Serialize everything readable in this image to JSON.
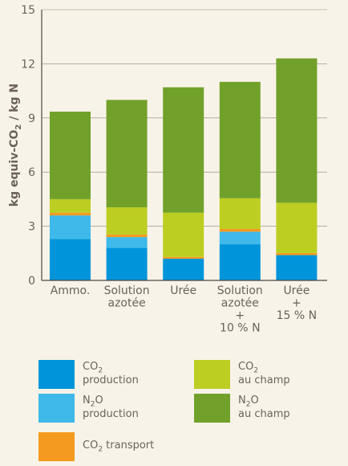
{
  "chart_data": {
    "type": "bar",
    "stacked": true,
    "ylabel": "kg equiv-CO2 / kg N",
    "ylim": [
      0,
      15
    ],
    "yticks": [
      0,
      3,
      6,
      9,
      12,
      15
    ],
    "grid": true,
    "categories": [
      [
        "Ammo."
      ],
      [
        "Solution",
        "azotée"
      ],
      [
        "Urée"
      ],
      [
        "Solution",
        "azotée",
        "+",
        "10 % N"
      ],
      [
        "Urée",
        "+",
        "15 % N"
      ]
    ],
    "series": [
      {
        "name": "CO2 production",
        "color": "#0095da",
        "values": [
          2.3,
          1.8,
          1.2,
          2.0,
          1.4
        ]
      },
      {
        "name": "N2O production",
        "color": "#3fb9ea",
        "values": [
          1.3,
          0.6,
          0.0,
          0.7,
          0.0
        ]
      },
      {
        "name": "CO2 transport",
        "color": "#f39a1f",
        "values": [
          0.15,
          0.15,
          0.1,
          0.15,
          0.12
        ]
      },
      {
        "name": "CO2 au champ",
        "color": "#bcce22",
        "values": [
          0.75,
          1.5,
          2.45,
          1.7,
          2.78
        ]
      },
      {
        "name": "N2O au champ",
        "color": "#72a12b",
        "values": [
          4.85,
          5.95,
          6.95,
          6.45,
          8.0
        ]
      }
    ]
  },
  "legend": [
    {
      "line1_pre": "CO",
      "line1_sub": "2",
      "line1_post": "",
      "line2": "production",
      "color": "#0095da"
    },
    {
      "line1_pre": "CO",
      "line1_sub": "2",
      "line1_post": "",
      "line2": "au champ",
      "color": "#bcce22"
    },
    {
      "line1_pre": "N",
      "line1_sub": "2",
      "line1_post": "O",
      "line2": "production",
      "color": "#3fb9ea"
    },
    {
      "line1_pre": "N",
      "line1_sub": "2",
      "line1_post": "O",
      "line2": "au champ",
      "color": "#72a12b"
    },
    {
      "line1_pre": "CO",
      "line1_sub": "2",
      "line1_post": " transport",
      "line2": "",
      "color": "#f39a1f"
    }
  ]
}
